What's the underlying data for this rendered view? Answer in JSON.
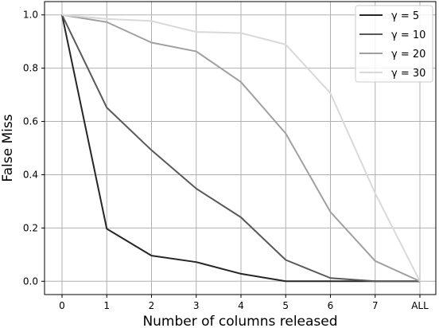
{
  "chart_data": {
    "type": "line",
    "title": "",
    "xlabel": "Number of columns released",
    "ylabel": "False Miss",
    "categories": [
      "0",
      "1",
      "2",
      "3",
      "4",
      "5",
      "6",
      "7",
      "ALL"
    ],
    "ylim": [
      -0.05,
      1.05
    ],
    "yticks": [
      "0.0",
      "0.2",
      "0.4",
      "0.6",
      "0.8",
      "1.0"
    ],
    "grid": true,
    "legend_position": "top-right",
    "series": [
      {
        "name": "γ = 5",
        "color": "#262626",
        "values": [
          1.0,
          0.197,
          0.096,
          0.072,
          0.028,
          0.0,
          0.0,
          0.0,
          0.0
        ]
      },
      {
        "name": "γ = 10",
        "color": "#595959",
        "values": [
          1.0,
          0.652,
          0.492,
          0.348,
          0.24,
          0.08,
          0.012,
          0.0,
          0.0
        ]
      },
      {
        "name": "γ = 20",
        "color": "#a0a0a0",
        "values": [
          1.0,
          0.973,
          0.896,
          0.863,
          0.748,
          0.555,
          0.26,
          0.076,
          0.0
        ]
      },
      {
        "name": "γ = 30",
        "color": "#d9d9d9",
        "values": [
          1.0,
          0.985,
          0.977,
          0.936,
          0.932,
          0.889,
          0.706,
          0.33,
          0.0
        ]
      }
    ]
  }
}
